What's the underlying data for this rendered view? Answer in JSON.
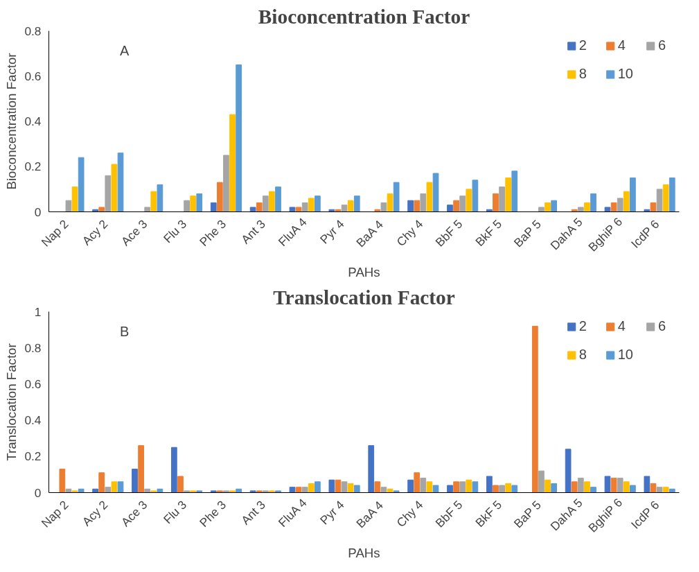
{
  "chart_data": [
    {
      "type": "bar",
      "title": "Bioconcentration Factor",
      "xlabel": "PAHs",
      "ylabel": "Bioconcentration Factor",
      "annotations": [
        "A"
      ],
      "categories": [
        "Nap  2",
        "Acy  2",
        "Ace  3",
        "Flu  3",
        "Phe  3",
        "Ant  3",
        "FluA 4",
        "Pyr  4",
        "BaA  4",
        "Chy  4",
        "BbF  5",
        "BkF  5",
        "BaP  5",
        "DahA 5",
        "BghiP 6",
        "IcdP  6"
      ],
      "series": [
        {
          "name": "2",
          "color": "#4472c4",
          "values": [
            0,
            0.01,
            0,
            0,
            0.04,
            0.02,
            0.02,
            0.01,
            0,
            0.05,
            0.03,
            0.01,
            0,
            0,
            0.02,
            0.01
          ]
        },
        {
          "name": "4",
          "color": "#ed7d31",
          "values": [
            0,
            0.02,
            0,
            0,
            0.13,
            0.04,
            0.02,
            0.01,
            0.01,
            0.05,
            0.05,
            0.08,
            0,
            0.01,
            0.04,
            0.04
          ]
        },
        {
          "name": "6",
          "color": "#a5a5a5",
          "values": [
            0.05,
            0.16,
            0.02,
            0.05,
            0.25,
            0.07,
            0.04,
            0.03,
            0.04,
            0.08,
            0.07,
            0.11,
            0.02,
            0.02,
            0.06,
            0.1
          ]
        },
        {
          "name": "8",
          "color": "#ffc000",
          "values": [
            0.11,
            0.21,
            0.09,
            0.07,
            0.43,
            0.09,
            0.06,
            0.05,
            0.08,
            0.13,
            0.1,
            0.15,
            0.04,
            0.04,
            0.09,
            0.12
          ]
        },
        {
          "name": "10",
          "color": "#5b9bd5",
          "values": [
            0.24,
            0.26,
            0.12,
            0.08,
            0.65,
            0.11,
            0.07,
            0.07,
            0.13,
            0.17,
            0.14,
            0.18,
            0.05,
            0.08,
            0.15,
            0.15
          ]
        }
      ],
      "ylim": [
        0,
        0.8
      ],
      "yticks": [
        0,
        0.2,
        0.4,
        0.6,
        0.8
      ],
      "grid": false,
      "legend": "top right"
    },
    {
      "type": "bar",
      "title": "Translocation Factor",
      "xlabel": "PAHs",
      "ylabel": "Translocation Factor",
      "annotations": [
        "B"
      ],
      "categories": [
        "Nap  2",
        "Acy  2",
        "Ace  3",
        "Flu  3",
        "Phe  3",
        "Ant  3",
        "FluA 4",
        "Pyr  4",
        "BaA  4",
        "Chy  4",
        "BbF  5",
        "BkF  5",
        "BaP  5",
        "DahA 5",
        "BghiP 6",
        "IcdP  6"
      ],
      "series": [
        {
          "name": "2",
          "color": "#4472c4",
          "values": [
            0,
            0.02,
            0.13,
            0.25,
            0.01,
            0.01,
            0.03,
            0.07,
            0.26,
            0.07,
            0.04,
            0.09,
            0,
            0.24,
            0.09,
            0.09
          ]
        },
        {
          "name": "4",
          "color": "#ed7d31",
          "values": [
            0.13,
            0.11,
            0.26,
            0.09,
            0.01,
            0.01,
            0.03,
            0.07,
            0.06,
            0.11,
            0.06,
            0.04,
            0.92,
            0.06,
            0.08,
            0.05
          ]
        },
        {
          "name": "6",
          "color": "#a5a5a5",
          "values": [
            0.02,
            0.03,
            0.02,
            0.01,
            0.01,
            0.01,
            0.03,
            0.06,
            0.03,
            0.08,
            0.06,
            0.04,
            0.12,
            0.08,
            0.08,
            0.03
          ]
        },
        {
          "name": "8",
          "color": "#ffc000",
          "values": [
            0.01,
            0.06,
            0.01,
            0.01,
            0.01,
            0.01,
            0.05,
            0.05,
            0.02,
            0.06,
            0.07,
            0.05,
            0.07,
            0.06,
            0.06,
            0.03
          ]
        },
        {
          "name": "10",
          "color": "#5b9bd5",
          "values": [
            0.02,
            0.06,
            0.02,
            0.01,
            0.02,
            0.01,
            0.06,
            0.04,
            0.01,
            0.04,
            0.06,
            0.04,
            0.05,
            0.03,
            0.04,
            0.02
          ]
        }
      ],
      "ylim": [
        0,
        1
      ],
      "yticks": [
        0,
        0.2,
        0.4,
        0.6,
        0.8,
        1
      ],
      "grid": false,
      "legend": "top right"
    }
  ]
}
